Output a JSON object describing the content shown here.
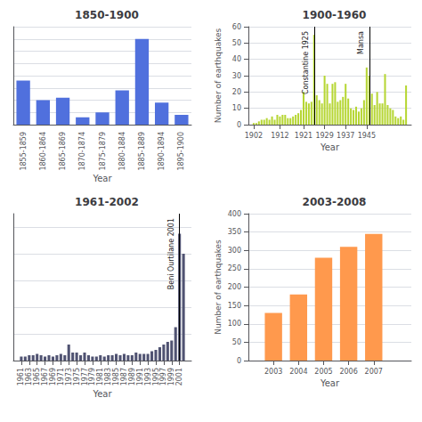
{
  "chart_data": [
    {
      "type": "bar",
      "title": "1850-1900",
      "xlabel": "Year",
      "categories": [
        "1855-1859",
        "1860-1864",
        "1865-1869",
        "1870-1874",
        "1875-1879",
        "1880-1884",
        "1885-1889",
        "1890-1894",
        "1895-1900"
      ],
      "values": [
        18,
        10,
        11,
        3,
        5,
        14,
        35,
        9,
        4
      ],
      "ylim": [
        0,
        40
      ],
      "yticks": [
        0,
        5,
        10,
        15,
        20,
        25,
        30,
        35,
        40
      ],
      "grid": true,
      "tick_labels": "x"
    },
    {
      "type": "bar",
      "title": "1900-1960",
      "xlabel": "Year",
      "ylabel": "Number of earthquakes",
      "x": [
        1902,
        1903,
        1904,
        1905,
        1906,
        1907,
        1908,
        1909,
        1910,
        1911,
        1912,
        1913,
        1914,
        1915,
        1916,
        1917,
        1918,
        1919,
        1920,
        1921,
        1922,
        1923,
        1924,
        1925,
        1926,
        1927,
        1928,
        1929,
        1930,
        1931,
        1932,
        1933,
        1934,
        1935,
        1936,
        1937,
        1938,
        1939,
        1940,
        1941,
        1942,
        1943,
        1944,
        1945,
        1946,
        1947,
        1948,
        1949,
        1950,
        1951,
        1952,
        1953,
        1954,
        1955,
        1956,
        1957,
        1958,
        1959,
        1960
      ],
      "values": [
        1,
        1,
        2,
        3,
        3,
        4,
        3,
        5,
        3,
        6,
        5,
        6,
        6,
        4,
        4,
        5,
        6,
        7,
        9,
        20,
        14,
        13,
        14,
        55,
        18,
        15,
        13,
        30,
        25,
        13,
        25,
        26,
        14,
        15,
        17,
        25,
        16,
        10,
        9,
        11,
        8,
        10,
        15,
        35,
        30,
        19,
        12,
        20,
        13,
        13,
        31,
        12,
        10,
        9,
        5,
        4,
        5,
        3,
        24
      ],
      "xlim": [
        1900,
        1962
      ],
      "xticks": [
        1902,
        1912,
        1921,
        1929,
        1937,
        1945
      ],
      "ylim": [
        0,
        60
      ],
      "yticks": [
        0,
        10,
        20,
        30,
        40,
        50,
        60
      ],
      "grid": true,
      "annotations": [
        {
          "x": 1925,
          "text": "Constantine 1925"
        },
        {
          "x": 1946,
          "text": "Mansa"
        }
      ]
    },
    {
      "type": "bar",
      "title": "1961-2002",
      "xlabel": "Year",
      "x": [
        1961,
        1962,
        1963,
        1964,
        1965,
        1966,
        1967,
        1968,
        1969,
        1970,
        1971,
        1972,
        1973,
        1974,
        1975,
        1976,
        1977,
        1978,
        1979,
        1980,
        1981,
        1982,
        1983,
        1984,
        1985,
        1986,
        1987,
        1988,
        1989,
        1990,
        1991,
        1992,
        1993,
        1994,
        1995,
        1996,
        1997,
        1998,
        1999,
        2000,
        2001,
        2002
      ],
      "values": [
        3,
        3,
        4,
        4,
        5,
        4,
        3,
        4,
        3,
        4,
        5,
        4,
        12,
        6,
        6,
        4,
        6,
        4,
        3,
        3,
        4,
        3,
        4,
        4,
        5,
        4,
        5,
        4,
        4,
        6,
        5,
        5,
        5,
        7,
        8,
        10,
        12,
        14,
        15,
        25,
        95,
        80
      ],
      "xlim": [
        1959,
        2004
      ],
      "xticks": [
        1961,
        1963,
        1965,
        1967,
        1969,
        1971,
        1973,
        1975,
        1977,
        1979,
        1981,
        1983,
        1985,
        1987,
        1989,
        1991,
        1993,
        1995,
        1997,
        1999,
        2001
      ],
      "ylim": [
        0,
        110
      ],
      "yticks": [
        0,
        20,
        40,
        60,
        80,
        100
      ],
      "grid": true,
      "tick_labels": "x",
      "annotations": [
        {
          "x": 2001,
          "text": "Beni Ourtilane 2001"
        }
      ]
    },
    {
      "type": "bar",
      "title": "2003-2008",
      "xlabel": "Year",
      "ylabel": "Number of earthquakes",
      "x": [
        2003,
        2004,
        2005,
        2006,
        2007
      ],
      "values": [
        130,
        180,
        280,
        310,
        345
      ],
      "xlim": [
        2002.0,
        2008.5
      ],
      "xticks": [
        2003,
        2004,
        2005,
        2006,
        2007
      ],
      "ylim": [
        0,
        400
      ],
      "yticks": [
        0,
        50,
        100,
        150,
        200,
        250,
        300,
        350,
        400
      ],
      "grid": true
    }
  ]
}
